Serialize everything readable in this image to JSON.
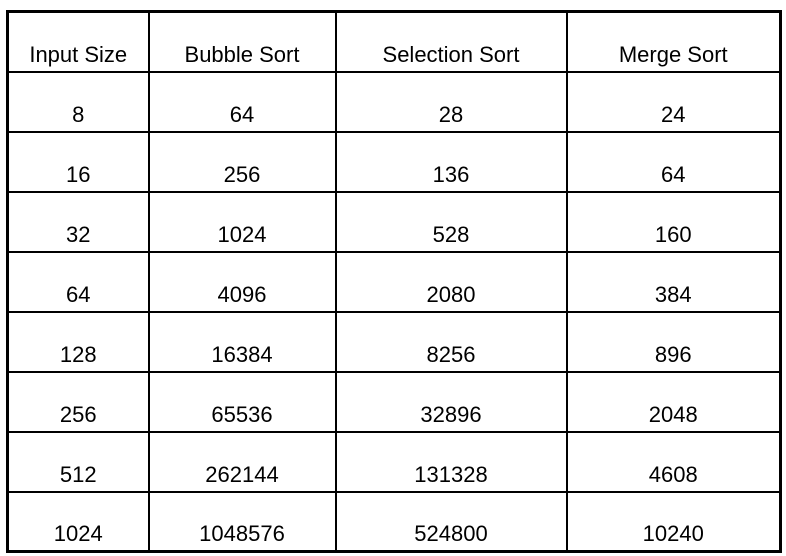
{
  "table": {
    "headers": [
      "Input Size",
      "Bubble Sort",
      "Selection Sort",
      "Merge Sort"
    ],
    "rows": [
      [
        "8",
        "64",
        "28",
        "24"
      ],
      [
        "16",
        "256",
        "136",
        "64"
      ],
      [
        "32",
        "1024",
        "528",
        "160"
      ],
      [
        "64",
        "4096",
        "2080",
        "384"
      ],
      [
        "128",
        "16384",
        "8256",
        "896"
      ],
      [
        "256",
        "65536",
        "32896",
        "2048"
      ],
      [
        "512",
        "262144",
        "131328",
        "4608"
      ],
      [
        "1024",
        "1048576",
        "524800",
        "10240"
      ]
    ]
  }
}
